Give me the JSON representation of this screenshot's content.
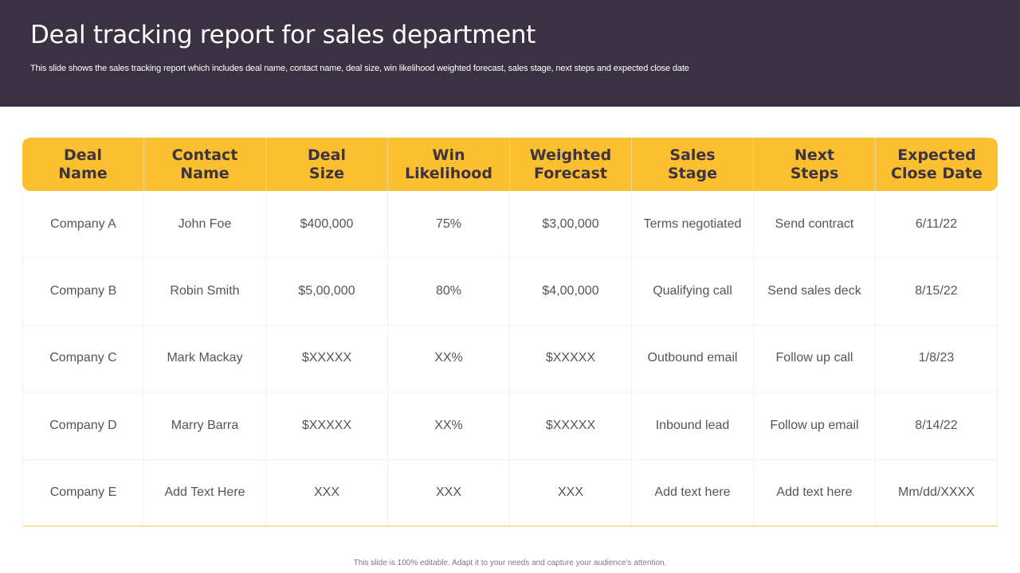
{
  "header": {
    "title": "Deal tracking report for sales department",
    "subtitle": "This slide shows the sales tracking report which includes deal name, contact name, deal size, win likelihood weighted forecast, sales stage, next steps and expected close date"
  },
  "table": {
    "columns": [
      [
        "Deal",
        "Name"
      ],
      [
        "Contact",
        "Name"
      ],
      [
        "Deal",
        "Size"
      ],
      [
        "Win",
        "Likelihood"
      ],
      [
        "Weighted",
        "Forecast"
      ],
      [
        "Sales",
        "Stage"
      ],
      [
        "Next",
        "Steps"
      ],
      [
        "Expected",
        "Close Date"
      ]
    ],
    "rows": [
      [
        "Company A",
        "John Foe",
        "$400,000",
        "75%",
        "$3,00,000",
        "Terms negotiated",
        "Send contract",
        "6/11/22"
      ],
      [
        "Company B",
        "Robin Smith",
        "$5,00,000",
        "80%",
        "$4,00,000",
        "Qualifying call",
        "Send sales deck",
        "8/15/22"
      ],
      [
        "Company C",
        "Mark Mackay",
        "$XXXXX",
        "XX%",
        "$XXXXX",
        "Outbound email",
        "Follow up call",
        "1/8/23"
      ],
      [
        "Company D",
        "Marry Barra",
        "$XXXXX",
        "XX%",
        "$XXXXX",
        "Inbound lead",
        "Follow up email",
        "8/14/22"
      ],
      [
        "Company E",
        "Add Text Here",
        "XXX",
        "XXX",
        "XXX",
        "Add text here",
        "Add text here",
        "Mm/dd/XXXX"
      ]
    ]
  },
  "footer": {
    "note": "This slide is 100% editable. Adapt it to your needs and capture your audience's attention."
  },
  "colors": {
    "header_bg": "#3a3142",
    "table_header_bg": "#fbbf2f",
    "header_text": "#3d3440"
  }
}
